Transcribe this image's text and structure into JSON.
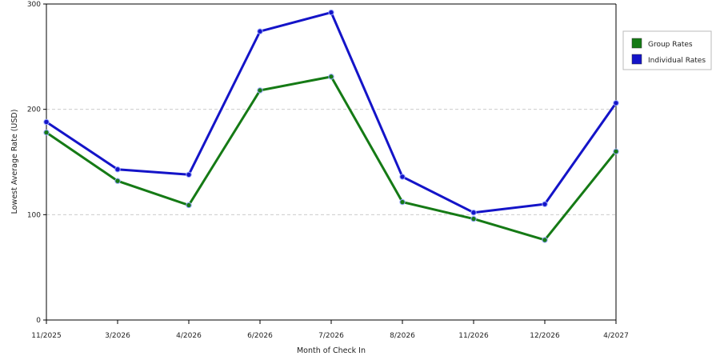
{
  "chart_data": {
    "type": "line",
    "title": "",
    "xlabel": "Month of Check In",
    "ylabel": "Lowest Average Rate (USD)",
    "categories": [
      "11/2025",
      "3/2026",
      "4/2026",
      "6/2026",
      "7/2026",
      "8/2026",
      "11/2026",
      "12/2026",
      "4/2027"
    ],
    "ylim": [
      0,
      300
    ],
    "yticks": [
      "0",
      "100",
      "200",
      "300"
    ],
    "grid": "horizontal dashed",
    "legend_position": "right",
    "series": [
      {
        "name": "Group Rates",
        "color": "#157a15",
        "values": [
          178,
          132,
          109,
          218,
          231,
          112,
          96,
          76,
          160
        ]
      },
      {
        "name": "Individual Rates",
        "color": "#1414c8",
        "values": [
          188,
          143,
          138,
          274,
          292,
          136,
          102,
          110,
          206
        ]
      }
    ]
  }
}
